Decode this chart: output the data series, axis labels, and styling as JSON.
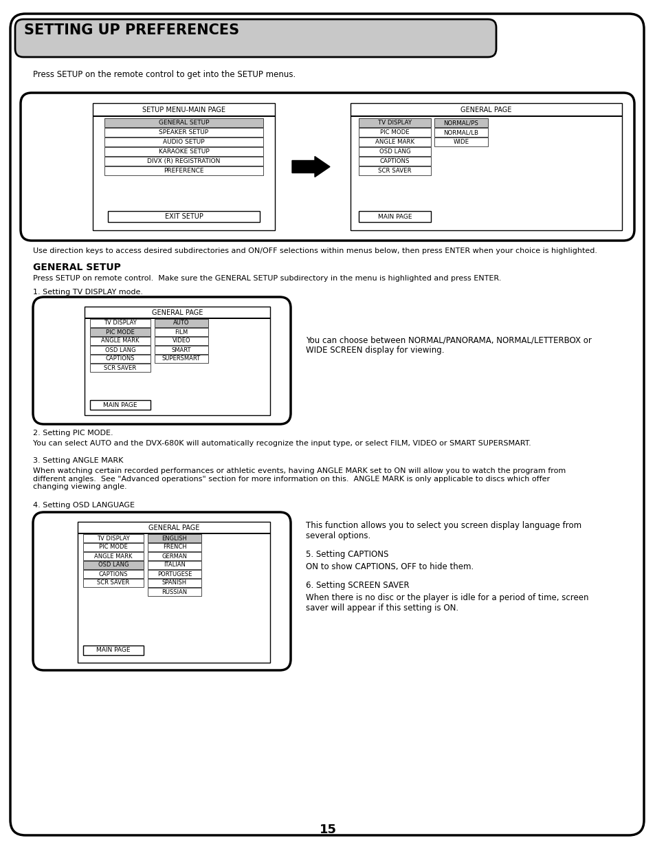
{
  "title": "SETTING UP PREFERENCES",
  "page_number": "15",
  "intro_text": "Press SETUP on the remote control to get into the SETUP menus.",
  "direction_text": "Use direction keys to access desired subdirectories and ON/OFF selections within menus below, then press ENTER when your choice is highlighted.",
  "section1_title": "GENERAL SETUP",
  "section1_subtitle": "Press SETUP on remote control.  Make sure the GENERAL SETUP subdirectory in the menu is highlighted and press ENTER.",
  "item1": "1. Setting TV DISPLAY mode.",
  "item1_desc": "You can choose between NORMAL/PANORAMA, NORMAL/LETTERBOX or\nWIDE SCREEN display for viewing.",
  "item2": "2. Setting PIC MODE.",
  "item2_desc": "You can select AUTO and the DVX-680K will automatically recognize the input type, or select FILM, VIDEO or SMART SUPERSMART.",
  "item3": "3. Setting ANGLE MARK",
  "item3_desc": "When watching certain recorded performances or athletic events, having ANGLE MARK set to ON will allow you to watch the program from\ndifferent angles.  See \"Advanced operations\" section for more information on this.  ANGLE MARK is only applicable to discs which offer\nchanging viewing angle.",
  "item4": "4. Setting OSD LANGUAGE",
  "item4_right1": "This function allows you to select you screen display language from\nseveral options.",
  "item5": "5. Setting CAPTIONS",
  "item5_desc": "ON to show CAPTIONS, OFF to hide them.",
  "item6": "6. Setting SCREEN SAVER",
  "item6_desc": "When there is no disc or the player is idle for a period of time, screen\nsaver will appear if this setting is ON.",
  "bg_color": "#ffffff",
  "header_bg": "#c8c8c8",
  "outer_border": "#000000"
}
